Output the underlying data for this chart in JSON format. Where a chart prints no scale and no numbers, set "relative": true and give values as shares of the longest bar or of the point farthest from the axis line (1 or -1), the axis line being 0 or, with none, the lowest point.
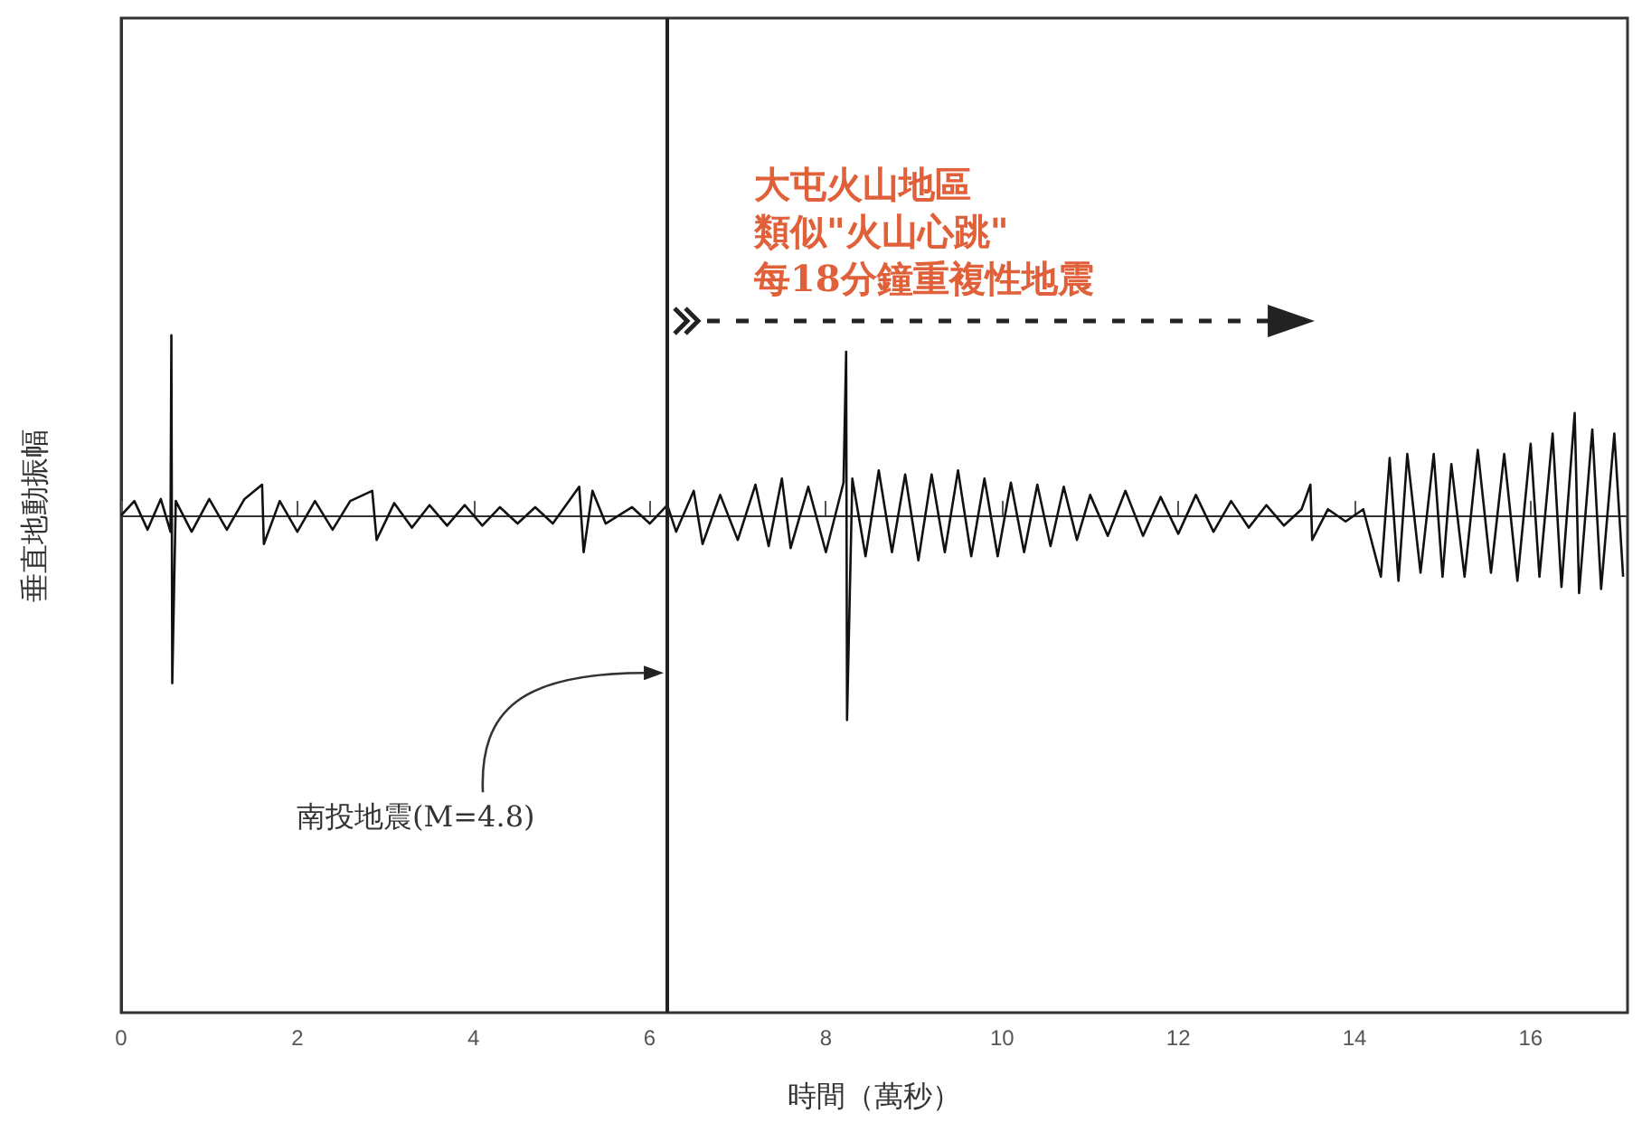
{
  "chart_data": {
    "type": "line",
    "relative": true,
    "xlabel": "時間（萬秒）",
    "ylabel": "垂直地動振幅",
    "xlim": [
      0,
      17.1
    ],
    "xticks": [
      0,
      2,
      4,
      6,
      8,
      10,
      12,
      14,
      16
    ],
    "grid": false,
    "marker": "none",
    "line_style": "solid",
    "ref_lines": [
      {
        "axis": "x",
        "value": 6.2,
        "color": "#222222"
      }
    ],
    "annotations": [
      "南投地震(M=4.8)",
      "大屯火山地區",
      "類似\"火山心跳\"",
      "每18分鐘重複性地震"
    ],
    "series": [
      {
        "color": "#111111",
        "x": [
          0,
          0.15,
          0.3,
          0.45,
          0.56,
          0.57,
          0.58,
          0.62,
          0.8,
          1.0,
          1.2,
          1.4,
          1.6,
          1.62,
          1.8,
          2.0,
          2.2,
          2.4,
          2.6,
          2.85,
          2.9,
          3.1,
          3.3,
          3.5,
          3.7,
          3.9,
          4.1,
          4.3,
          4.5,
          4.7,
          4.9,
          5.2,
          5.25,
          5.35,
          5.5,
          5.8,
          6.0,
          6.2,
          6.3,
          6.5,
          6.6,
          6.8,
          7.0,
          7.2,
          7.35,
          7.5,
          7.6,
          7.8,
          8.0,
          8.2,
          8.23,
          8.24,
          8.3,
          8.45,
          8.6,
          8.75,
          8.9,
          9.05,
          9.2,
          9.35,
          9.5,
          9.65,
          9.8,
          9.95,
          10.1,
          10.25,
          10.4,
          10.55,
          10.7,
          10.85,
          11.0,
          11.2,
          11.4,
          11.6,
          11.8,
          12.0,
          12.2,
          12.4,
          12.6,
          12.8,
          13.0,
          13.2,
          13.4,
          13.5,
          13.52,
          13.7,
          13.9,
          14.1,
          14.3,
          14.4,
          14.5,
          14.6,
          14.75,
          14.9,
          15.0,
          15.1,
          15.25,
          15.4,
          15.55,
          15.7,
          15.85,
          16.0,
          16.1,
          16.25,
          16.35,
          16.5,
          16.55,
          16.7,
          16.8,
          16.95,
          17.05
        ],
        "values": [
          0,
          0.07,
          -0.07,
          0.08,
          -0.08,
          0.88,
          -0.82,
          0.07,
          -0.08,
          0.08,
          -0.07,
          0.08,
          0.15,
          -0.14,
          0.07,
          -0.08,
          0.07,
          -0.07,
          0.07,
          0.12,
          -0.12,
          0.06,
          -0.06,
          0.05,
          -0.05,
          0.05,
          -0.05,
          0.04,
          -0.04,
          0.04,
          -0.04,
          0.14,
          -0.18,
          0.12,
          -0.04,
          0.04,
          -0.04,
          0.05,
          -0.08,
          0.12,
          -0.14,
          0.1,
          -0.12,
          0.15,
          -0.15,
          0.18,
          -0.16,
          0.14,
          -0.18,
          0.16,
          0.8,
          -1.0,
          0.18,
          -0.2,
          0.22,
          -0.18,
          0.2,
          -0.22,
          0.2,
          -0.18,
          0.22,
          -0.2,
          0.18,
          -0.2,
          0.16,
          -0.18,
          0.15,
          -0.15,
          0.14,
          -0.12,
          0.1,
          -0.1,
          0.12,
          -0.1,
          0.09,
          -0.09,
          0.1,
          -0.08,
          0.07,
          -0.06,
          0.05,
          -0.05,
          0.03,
          0.15,
          -0.12,
          0.03,
          -0.03,
          0.03,
          -0.3,
          0.28,
          -0.32,
          0.3,
          -0.28,
          0.3,
          -0.3,
          0.25,
          -0.3,
          0.32,
          -0.28,
          0.3,
          -0.32,
          0.35,
          -0.3,
          0.4,
          -0.35,
          0.5,
          -0.38,
          0.42,
          -0.36,
          0.4,
          -0.3
        ]
      }
    ]
  }
}
